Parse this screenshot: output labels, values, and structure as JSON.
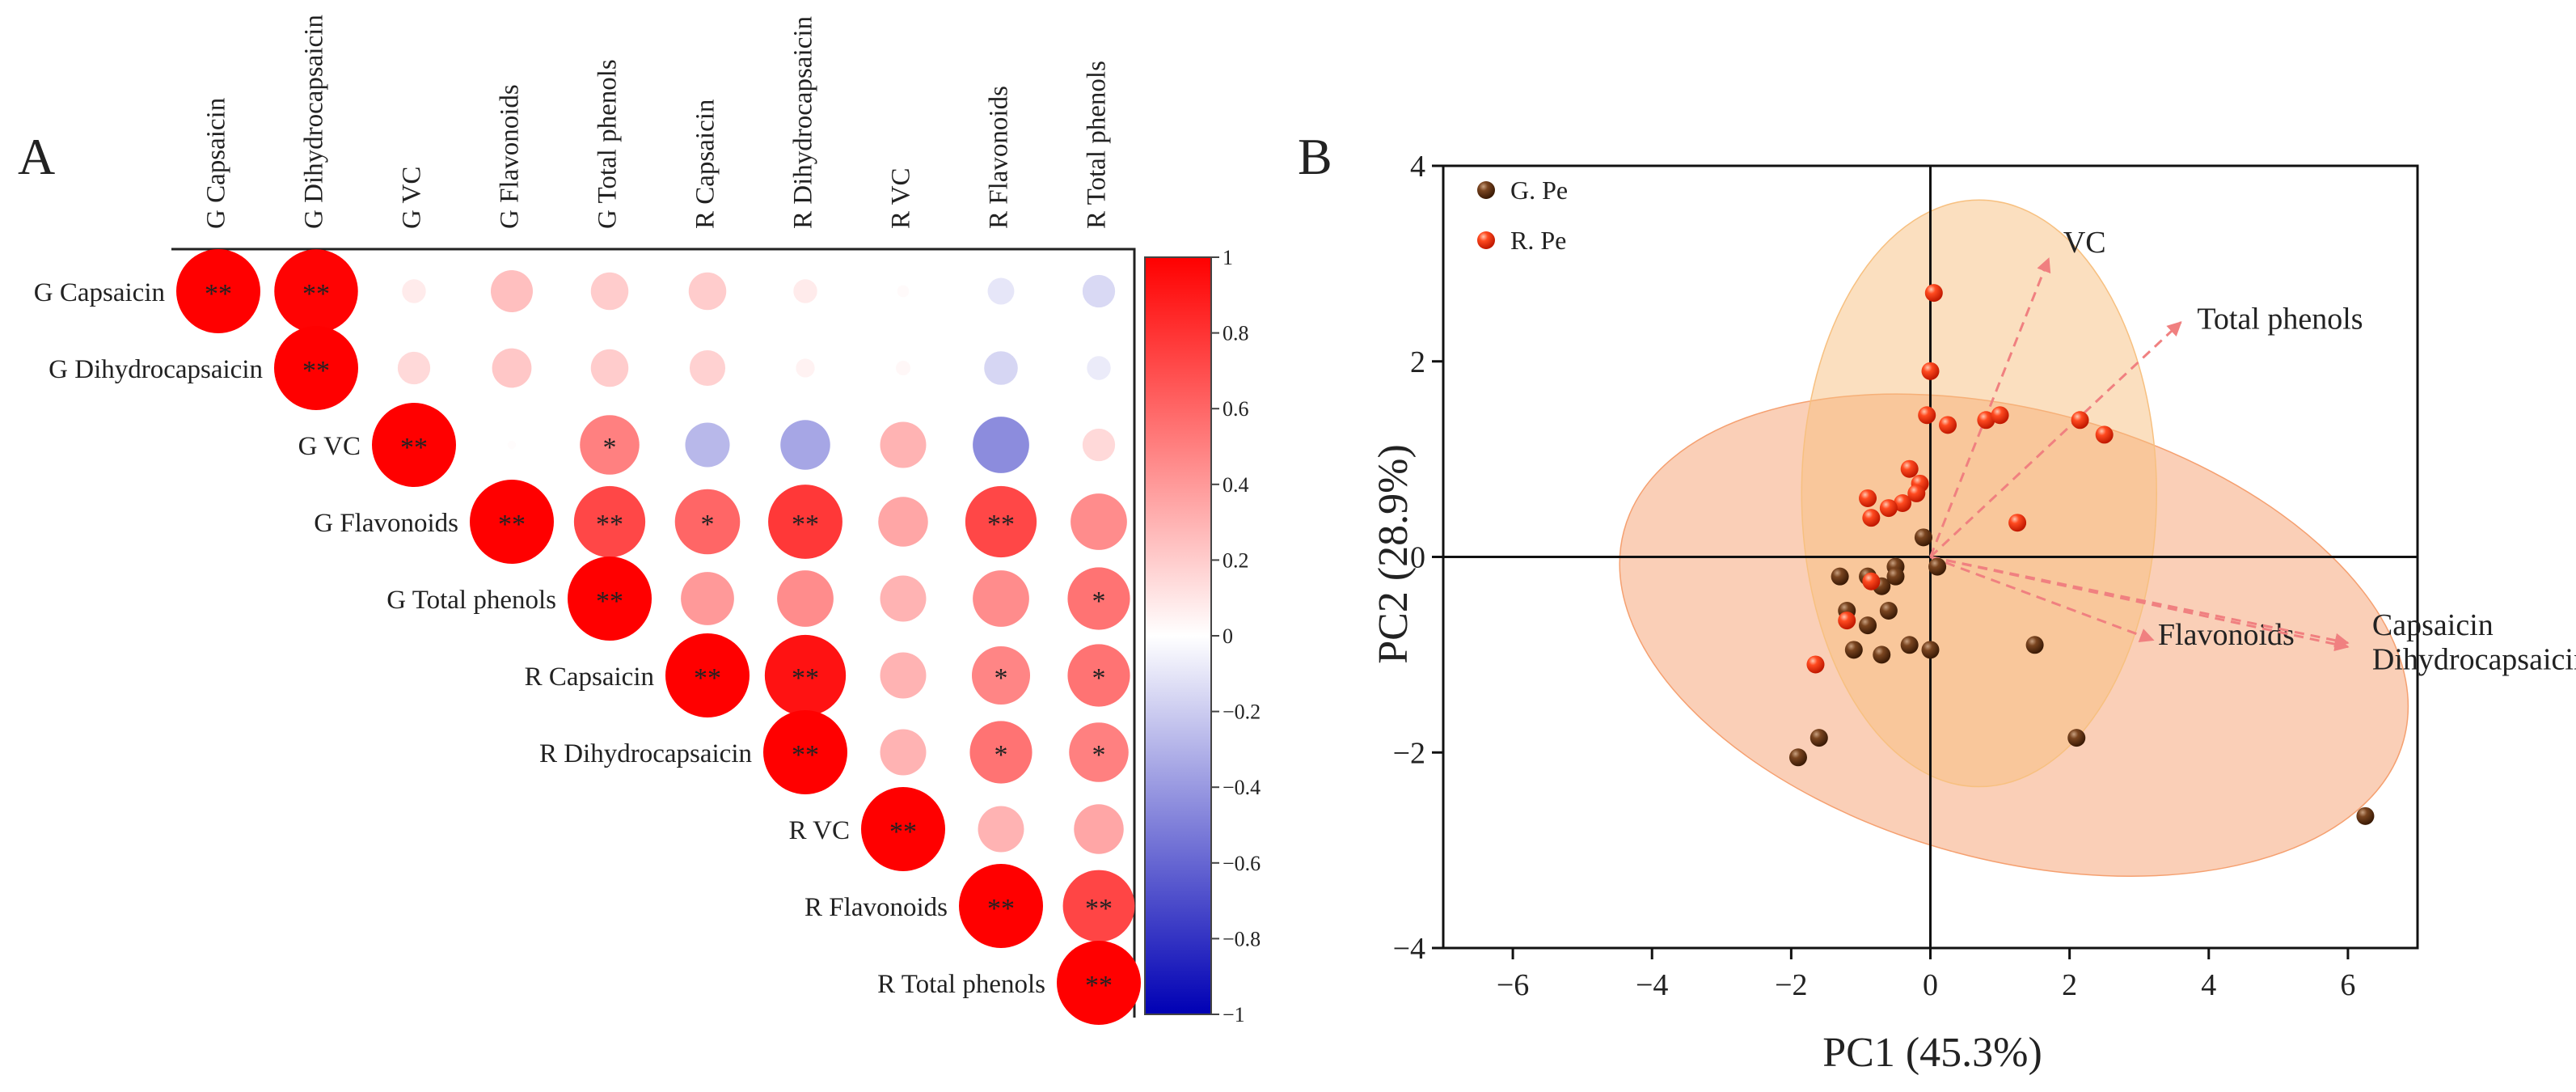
{
  "chart_data": [
    {
      "type": "heatmap",
      "panel_label": "A",
      "variables": [
        "G Capsaicin",
        "G Dihydrocapsaicin",
        "G VC",
        "G Flavonoids",
        "G Total phenols",
        "R  Capsaicin",
        "R  Dihydrocapsaicin",
        "R  VC",
        "R  Flavonoids",
        "R  Total phenols"
      ],
      "column_labels": [
        "G Capsaicin",
        "G Dihydrocapsaicin",
        "G VC",
        "G Flavonoids",
        "G Total phenols",
        "R  Capsaicin",
        "R  Dihydrocapsaicin",
        "R  VC",
        "R  Flavonoids",
        "R  Total phenols"
      ],
      "row_labels": [
        "G Capsaicin",
        "G Dihydrocapsaicin",
        "G VC",
        "G Flavonoids",
        "G Total phenols",
        "R  Capsaicin",
        "R  Dihydrocapsaicin",
        "R  VC",
        "R  Flavonoids",
        "R  Total phenols"
      ],
      "matrix": [
        [
          1.0,
          0.99,
          0.08,
          0.25,
          0.2,
          0.2,
          0.08,
          0.02,
          -0.1,
          -0.15
        ],
        [
          null,
          1.0,
          0.15,
          0.22,
          0.2,
          0.18,
          0.05,
          0.03,
          -0.16,
          -0.08
        ],
        [
          null,
          null,
          1.0,
          0.01,
          0.5,
          -0.28,
          -0.35,
          0.3,
          -0.45,
          0.15
        ],
        [
          null,
          null,
          null,
          1.0,
          0.72,
          0.6,
          0.78,
          0.35,
          0.72,
          0.45
        ],
        [
          null,
          null,
          null,
          null,
          1.0,
          0.4,
          0.45,
          0.3,
          0.45,
          0.55
        ],
        [
          null,
          null,
          null,
          null,
          null,
          1.0,
          0.93,
          0.3,
          0.48,
          0.55
        ],
        [
          null,
          null,
          null,
          null,
          null,
          null,
          1.0,
          0.3,
          0.55,
          0.5
        ],
        [
          null,
          null,
          null,
          null,
          null,
          null,
          null,
          1.0,
          0.3,
          0.35
        ],
        [
          null,
          null,
          null,
          null,
          null,
          null,
          null,
          null,
          1.0,
          0.73
        ],
        [
          null,
          null,
          null,
          null,
          null,
          null,
          null,
          null,
          null,
          1.0
        ]
      ],
      "significance": [
        [
          "**",
          "**",
          "",
          "",
          "",
          "",
          "",
          "",
          "",
          ""
        ],
        [
          "",
          "**",
          "",
          "",
          "",
          "",
          "",
          "",
          "",
          ""
        ],
        [
          "",
          "",
          "**",
          "",
          "*",
          "",
          "",
          "",
          "",
          ""
        ],
        [
          "",
          "",
          "",
          "**",
          "**",
          "*",
          "**",
          "",
          "**",
          ""
        ],
        [
          "",
          "",
          "",
          "",
          "**",
          "",
          "",
          "",
          "",
          "*"
        ],
        [
          "",
          "",
          "",
          "",
          "",
          "**",
          "**",
          "",
          "*",
          "*"
        ],
        [
          "",
          "",
          "",
          "",
          "",
          "",
          "**",
          "",
          "*",
          "*"
        ],
        [
          "",
          "",
          "",
          "",
          "",
          "",
          "",
          "**",
          "",
          ""
        ],
        [
          "",
          "",
          "",
          "",
          "",
          "",
          "",
          "",
          "**",
          "**"
        ],
        [
          "",
          "",
          "",
          "",
          "",
          "",
          "",
          "",
          "",
          "**"
        ]
      ],
      "colorbar": {
        "range": [
          -1,
          1
        ],
        "ticks": [
          "1",
          "0.8",
          "0.6",
          "0.4",
          "0.2",
          "0",
          "−0.2",
          "−0.4",
          "−0.6",
          "−0.8",
          "−1"
        ],
        "colors": {
          "positive": "#ff0000",
          "neutral": "#ffffff",
          "negative": "#0000b4"
        }
      }
    },
    {
      "type": "scatter",
      "panel_label": "B",
      "xlabel": "PC1 (45.3%)",
      "ylabel": "PC2 (28.9%)",
      "xlim": [
        -7,
        7
      ],
      "ylim": [
        -4,
        4
      ],
      "xticks": [
        "−6",
        "−4",
        "−2",
        "0",
        "2",
        "4",
        "6"
      ],
      "yticks": [
        "4",
        "2",
        "0",
        "−2",
        "−4"
      ],
      "series": [
        {
          "name": "G. Pe",
          "color": "#5c2d0c",
          "points": [
            [
              0.1,
              -0.1
            ],
            [
              -0.5,
              -0.1
            ],
            [
              -0.9,
              -0.2
            ],
            [
              -1.3,
              -0.2
            ],
            [
              -0.5,
              -0.2
            ],
            [
              -0.7,
              -0.3
            ],
            [
              -0.1,
              0.2
            ],
            [
              -0.6,
              -0.55
            ],
            [
              -0.3,
              -0.9
            ],
            [
              -1.1,
              -0.95
            ],
            [
              -0.7,
              -1.0
            ],
            [
              0.0,
              -0.95
            ],
            [
              -0.9,
              -0.7
            ],
            [
              1.5,
              -0.9
            ],
            [
              -1.2,
              -0.55
            ],
            [
              -1.6,
              -1.85
            ],
            [
              -1.9,
              -2.05
            ],
            [
              2.1,
              -1.85
            ],
            [
              6.25,
              -2.65
            ]
          ]
        },
        {
          "name": "R. Pe",
          "color": "#ff3c14",
          "points": [
            [
              0.05,
              2.7
            ],
            [
              0.0,
              1.9
            ],
            [
              -0.05,
              1.45
            ],
            [
              0.25,
              1.35
            ],
            [
              0.8,
              1.4
            ],
            [
              1.0,
              1.45
            ],
            [
              2.15,
              1.4
            ],
            [
              2.5,
              1.25
            ],
            [
              -0.3,
              0.9
            ],
            [
              -0.15,
              0.75
            ],
            [
              -0.2,
              0.65
            ],
            [
              -0.4,
              0.55
            ],
            [
              -0.9,
              0.6
            ],
            [
              -0.6,
              0.5
            ],
            [
              -0.85,
              0.4
            ],
            [
              1.25,
              0.35
            ],
            [
              -1.2,
              -0.65
            ],
            [
              -1.65,
              -1.1
            ],
            [
              -0.85,
              -0.25
            ]
          ]
        }
      ],
      "loadings": [
        {
          "label": "VC",
          "x": 1.7,
          "y": 3.05
        },
        {
          "label": "Total phenols",
          "x": 3.6,
          "y": 2.4
        },
        {
          "label": "Flavonoids",
          "x": 3.2,
          "y": -0.85
        },
        {
          "label": "Capsaicin",
          "x": 6.0,
          "y": -0.88
        },
        {
          "label": "Dihydrocapsaicin",
          "x": 6.0,
          "y": -0.92
        }
      ],
      "ellipses": [
        {
          "group": "G. Pe",
          "cx": 1.2,
          "cy": -0.8,
          "rx": 5.8,
          "ry": 2.3,
          "angle_deg": -15,
          "color": "#f5a070"
        },
        {
          "group": "R. Pe",
          "cx": 0.7,
          "cy": 0.65,
          "rx": 2.55,
          "ry": 3.0,
          "angle_deg": 0,
          "color": "#f7c080"
        }
      ]
    }
  ]
}
